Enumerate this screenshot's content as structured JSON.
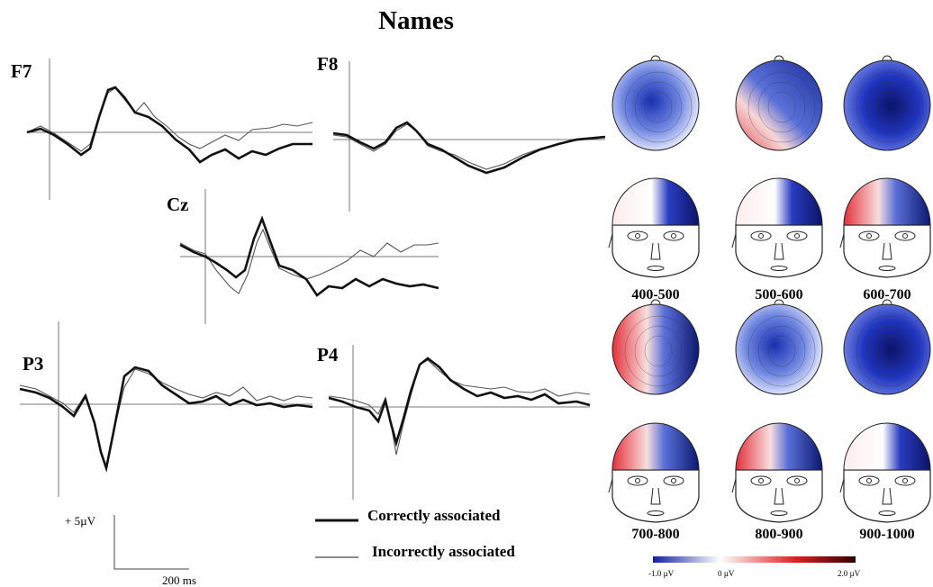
{
  "title": "Names",
  "panels": [
    {
      "label": "F7"
    },
    {
      "label": "F8"
    },
    {
      "label": "Cz"
    },
    {
      "label": "P3"
    },
    {
      "label": "P4"
    }
  ],
  "scale": {
    "amplitude": "+ 5µV",
    "time": "200 ms"
  },
  "legend": [
    {
      "label": "Correctly associated"
    },
    {
      "label": "Incorrectly associated"
    }
  ],
  "maps": {
    "time_windows": [
      "400-500",
      "500-600",
      "600-700",
      "700-800",
      "800-900",
      "900-1000"
    ]
  },
  "colorbar": {
    "labels": [
      "-1.0 µV",
      "0 µV",
      "2.0 µV"
    ]
  }
}
